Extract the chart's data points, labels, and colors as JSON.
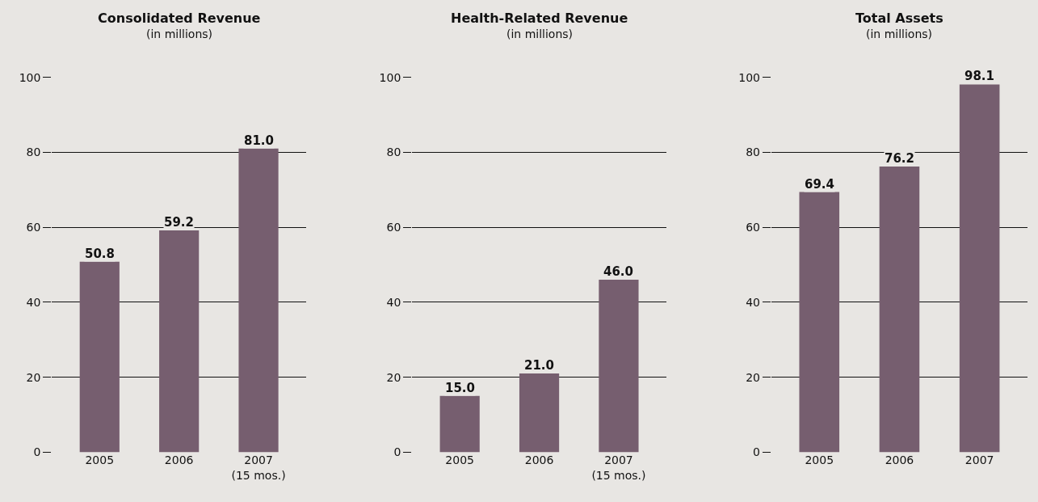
{
  "chart_data": [
    {
      "type": "bar",
      "title": "Consolidated Revenue",
      "subtitle": "(in millions)",
      "categories": [
        "2005",
        "2006",
        "2007\n(15 mos.)"
      ],
      "values": [
        50.8,
        59.2,
        81.0
      ],
      "value_labels": [
        "50.8",
        "59.2",
        "81.0"
      ],
      "color": "#765e6f",
      "ylim": [
        0,
        100
      ],
      "yticks": [
        0,
        20,
        40,
        60,
        80,
        100
      ],
      "grid": "y"
    },
    {
      "type": "bar",
      "title": "Health-Related Revenue",
      "subtitle": "(in millions)",
      "categories": [
        "2005",
        "2006",
        "2007\n(15 mos.)"
      ],
      "values": [
        15.0,
        21.0,
        46.0
      ],
      "value_labels": [
        "15.0",
        "21.0",
        "46.0"
      ],
      "color": "#765e6f",
      "ylim": [
        0,
        100
      ],
      "yticks": [
        0,
        20,
        40,
        60,
        80,
        100
      ],
      "grid": "y"
    },
    {
      "type": "bar",
      "title": "Total Assets",
      "subtitle": "(in millions)",
      "categories": [
        "2005",
        "2006",
        "2007"
      ],
      "values": [
        69.4,
        76.2,
        98.1
      ],
      "value_labels": [
        "69.4",
        "76.2",
        "98.1"
      ],
      "color": "#765e6f",
      "ylim": [
        0,
        100
      ],
      "yticks": [
        0,
        20,
        40,
        60,
        80,
        100
      ],
      "grid": "y"
    }
  ]
}
